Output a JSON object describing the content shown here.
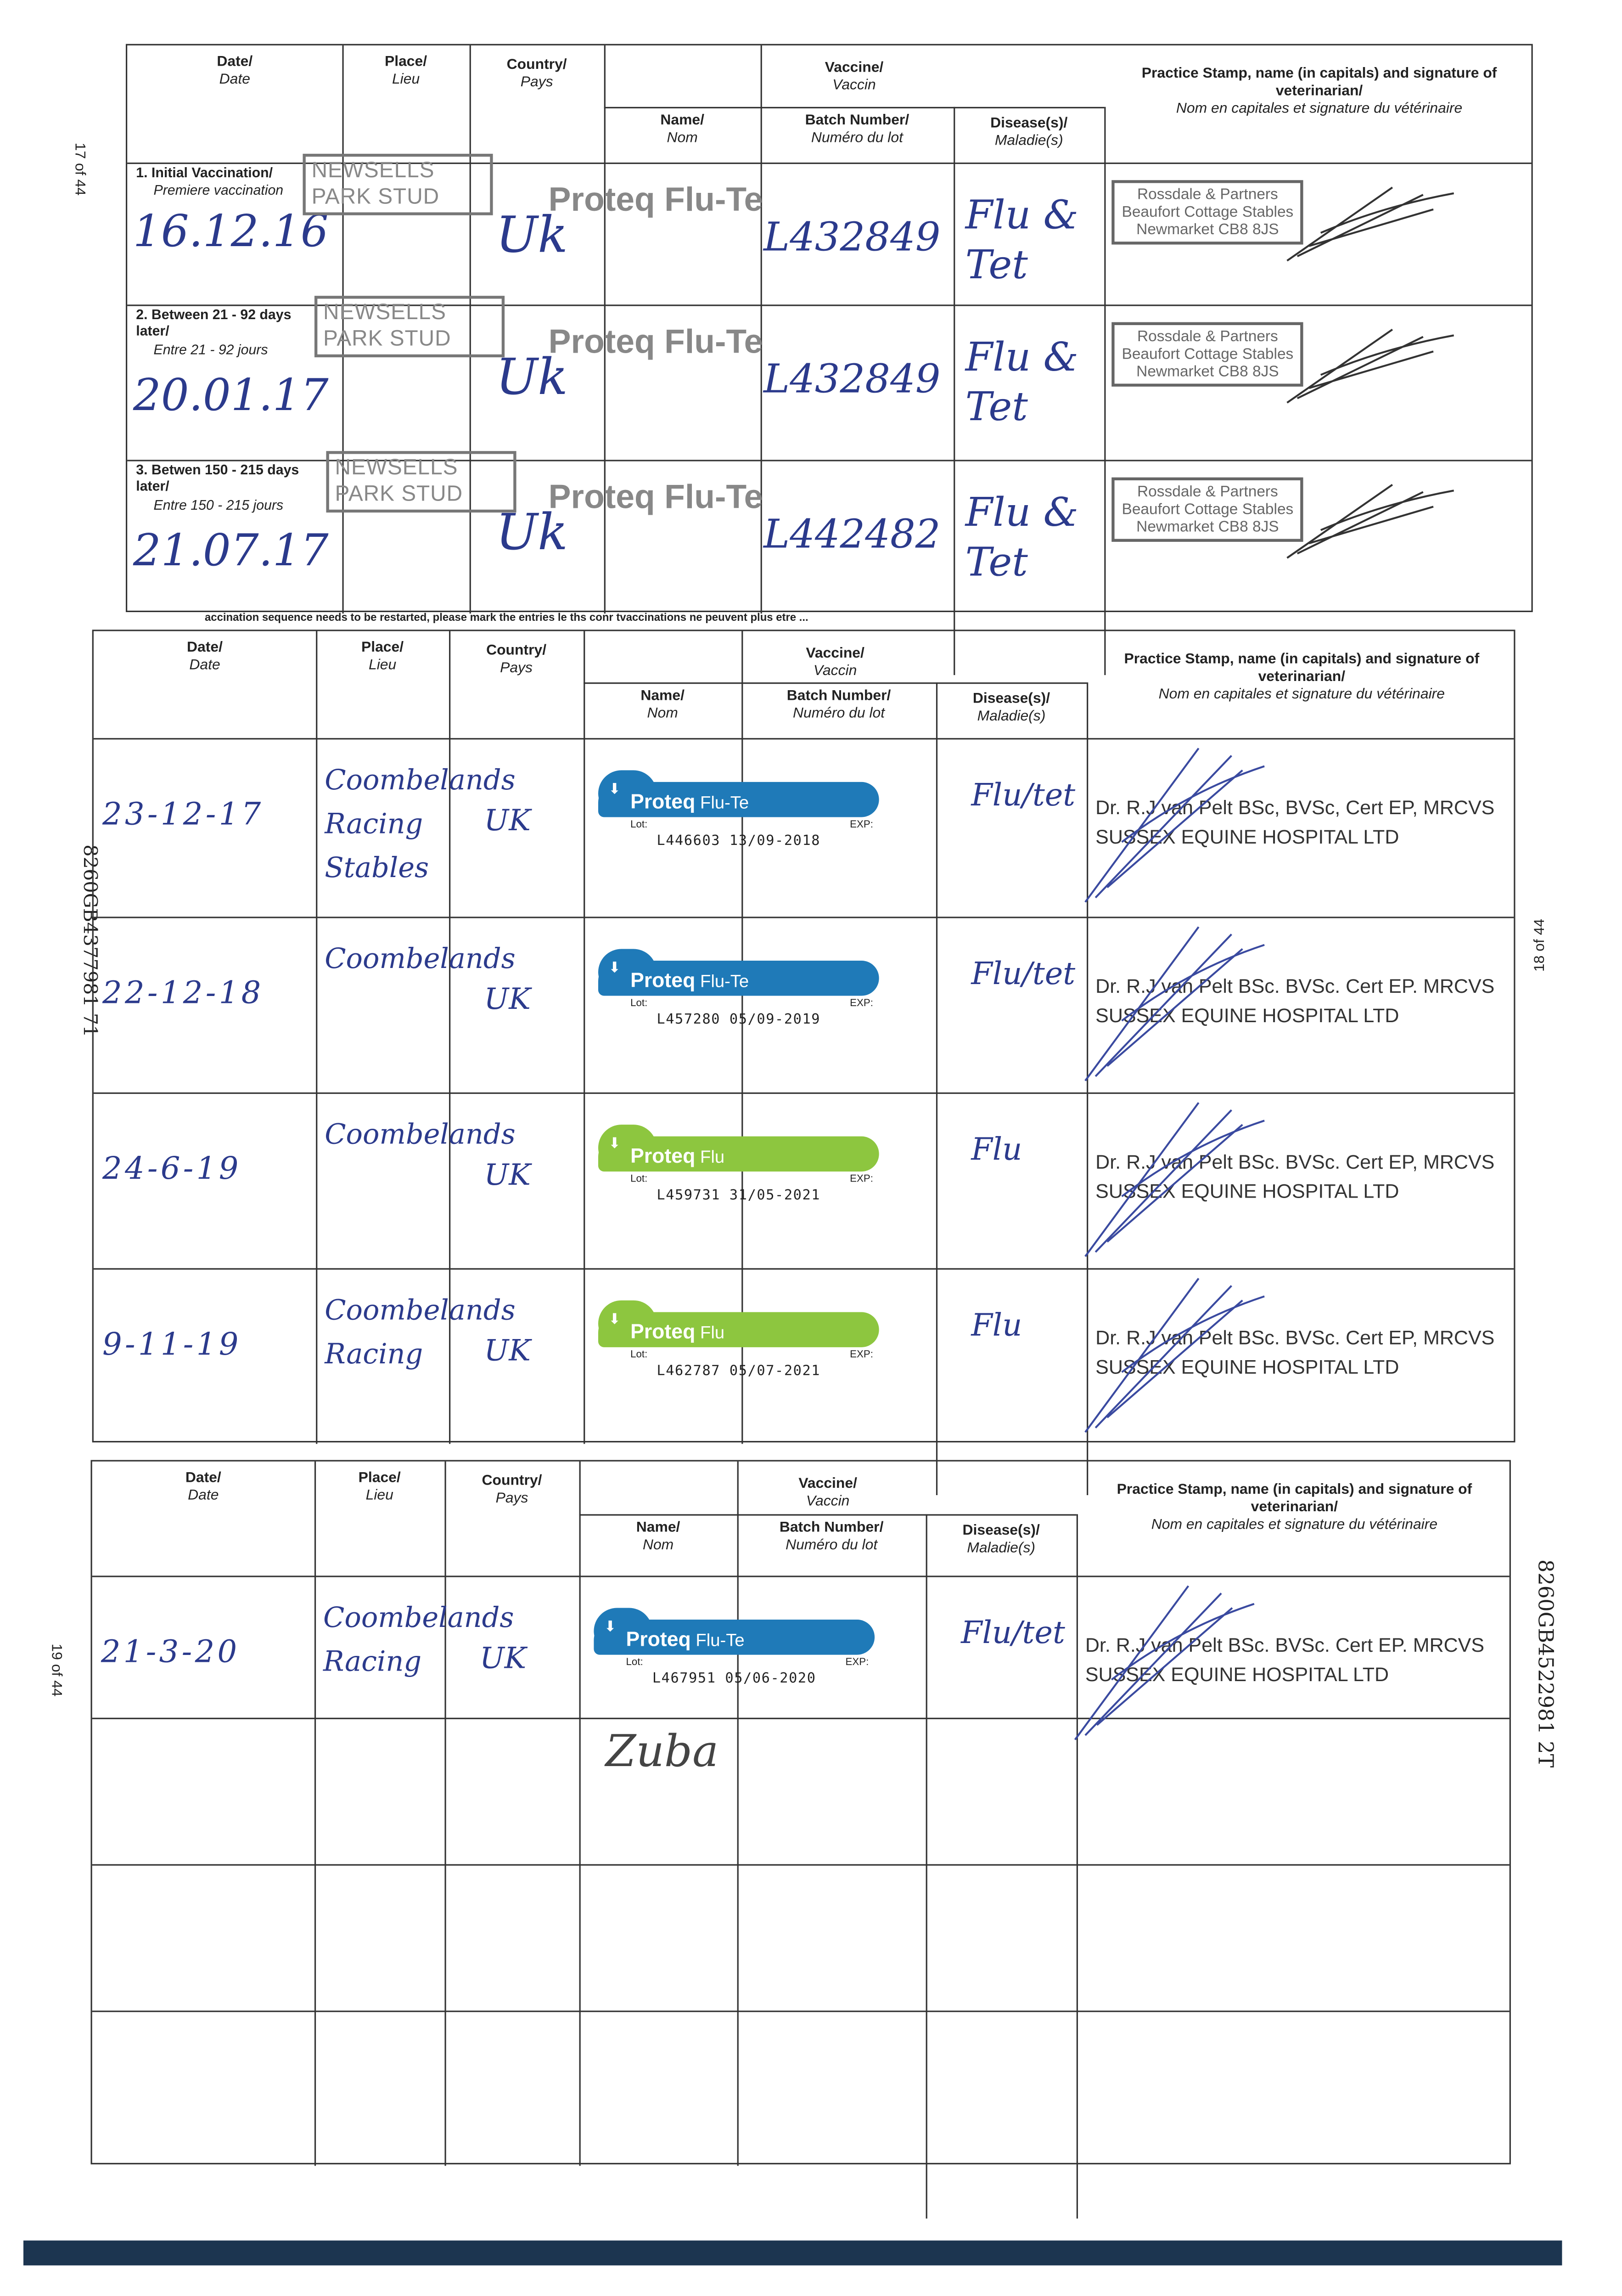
{
  "headers": {
    "date": "Date/",
    "date_fr": "Date",
    "place": "Place/",
    "place_fr": "Lieu",
    "country": "Country/",
    "country_fr": "Pays",
    "vaccine": "Vaccine/",
    "vaccine_fr": "Vaccin",
    "name": "Name/",
    "name_fr": "Nom",
    "batch": "Batch Number/",
    "batch_fr": "Numéro du lot",
    "disease": "Disease(s)/",
    "disease_fr": "Maladie(s)",
    "stamp": "Practice Stamp, name (in capitals) and signature of veterinarian/",
    "stamp_fr": "Nom en capitales et signature du vétérinaire"
  },
  "side_labels": {
    "p17": "17 of 44",
    "p18": "18 of 44",
    "p19": "19 of 44",
    "code_left": "8260GB4377981 71",
    "code_right": "8260GB4522981 2T"
  },
  "restart_note": "accination sequence needs to be restarted, please mark the entries le ths conr tvaccinations ne peuvent plus etre ... ",
  "table1": [
    {
      "label": "1. Initial Vaccination/",
      "label_fr": "Premiere vaccination",
      "date": "16.12.16",
      "place": "NEWSELLS PARK STUD",
      "country": "Uk",
      "name": "Proteq Flu-Te",
      "batch": "L432849",
      "disease": "Flu & Tet",
      "stamp": [
        "Rossdale & Partners",
        "Beaufort Cottage Stables",
        "Newmarket CB8 8JS"
      ]
    },
    {
      "label": "2. Between 21 - 92 days later/",
      "label_fr": "Entre 21 - 92 jours",
      "date": "20.01.17",
      "place": "NEWSELLS PARK STUD",
      "country": "Uk",
      "name": "Proteq Flu-Te",
      "batch": "L432849",
      "disease": "Flu & Tet",
      "stamp": [
        "Rossdale & Partners",
        "Beaufort Cottage Stables",
        "Newmarket CB8 8JS"
      ]
    },
    {
      "label": "3. Betwen 150 - 215 days later/",
      "label_fr": "Entre 150 - 215 jours",
      "date": "21.07.17",
      "place": "NEWSELLS PARK STUD",
      "country": "Uk",
      "name": "Proteq Flu-Te",
      "batch": "L442482",
      "disease": "Flu & Tet",
      "stamp": [
        "Rossdale & Partners",
        "Beaufort Cottage Stables",
        "Newmarket CB8 8JS"
      ]
    }
  ],
  "table2": [
    {
      "date": "23-12-17",
      "place": "Coombelands Racing Stables",
      "country": "UK",
      "brand": "Proteq",
      "product": "Flu-Te",
      "color": "#1f7ab8",
      "lot_label": "Lot:",
      "exp_label": "EXP:",
      "lot": "L446603",
      "exp": "13/09-2018",
      "disease": "Flu/tet",
      "vet": "Dr. R.J van Pelt BSc, BVSc, Cert EP, MRCVS",
      "hospital": "SUSSEX EQUINE HOSPITAL LTD"
    },
    {
      "date": "22-12-18",
      "place": "Coombelands",
      "country": "UK",
      "brand": "Proteq",
      "product": "Flu-Te",
      "color": "#1f7ab8",
      "lot_label": "Lot:",
      "exp_label": "EXP:",
      "lot": "L457280",
      "exp": "05/09-2019",
      "disease": "Flu/tet",
      "vet": "Dr. R.J van Pelt BSc. BVSc. Cert EP. MRCVS",
      "hospital": "SUSSEX EQUINE HOSPITAL LTD"
    },
    {
      "date": "24-6-19",
      "place": "Coombelands",
      "country": "UK",
      "brand": "Proteq",
      "product": "Flu",
      "color": "#8dc63f",
      "lot_label": "Lot:",
      "exp_label": "EXP:",
      "lot": "L459731",
      "exp": "31/05-2021",
      "disease": "Flu",
      "vet": "Dr. R.J van Pelt BSc. BVSc. Cert EP, MRCVS",
      "hospital": "SUSSEX EQUINE HOSPITAL LTD"
    },
    {
      "date": "9-11-19",
      "place": "Coombelands Racing",
      "country": "UK",
      "brand": "Proteq",
      "product": "Flu",
      "color": "#8dc63f",
      "lot_label": "Lot:",
      "exp_label": "EXP:",
      "lot": "L462787",
      "exp": "05/07-2021",
      "disease": "Flu",
      "vet": "Dr. R.J van Pelt BSc. BVSc. Cert EP, MRCVS",
      "hospital": "SUSSEX EQUINE HOSPITAL LTD"
    }
  ],
  "table3": [
    {
      "date": "21-3-20",
      "place": "Coombelands Racing",
      "country": "UK",
      "brand": "Proteq",
      "product": "Flu-Te",
      "color": "#1f7ab8",
      "lot_label": "Lot:",
      "exp_label": "EXP:",
      "lot": "L467951",
      "exp": "05/06-2020",
      "disease": "Flu/tet",
      "vet": "Dr. R.J van Pelt BSc. BVSc. Cert EP. MRCVS",
      "hospital": "SUSSEX EQUINE HOSPITAL LTD"
    },
    {
      "name_handwritten": "Zuba"
    },
    {},
    {}
  ],
  "colors": {
    "ink": "#2b3a8c",
    "bottom_bar": "#1c3550"
  }
}
